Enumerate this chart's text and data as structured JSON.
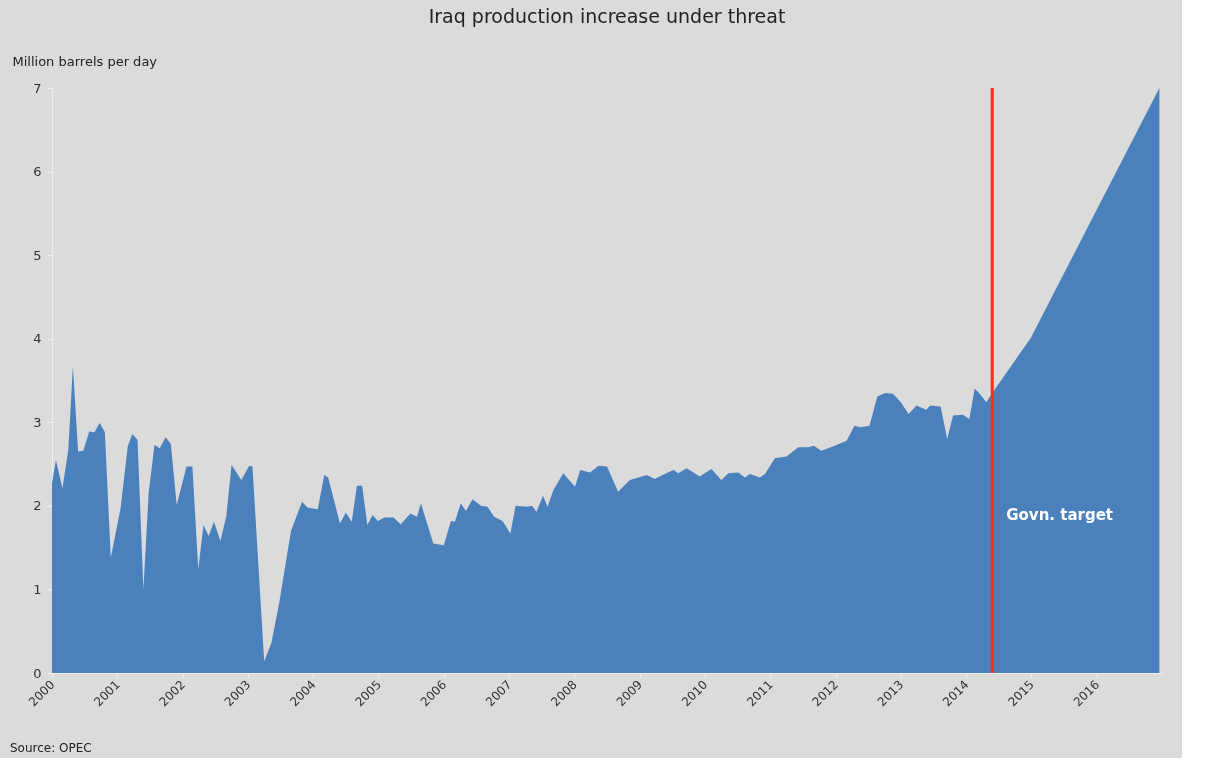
{
  "chart_data": {
    "type": "area",
    "title": "Iraq production increase under threat",
    "ylabel": "Million barrels per day",
    "x": [
      2000.0,
      2000.06,
      2000.16,
      2000.25,
      2000.32,
      2000.4,
      2000.48,
      2000.57,
      2000.65,
      2000.73,
      2000.81,
      2000.9,
      2001.05,
      2001.16,
      2001.23,
      2001.31,
      2001.4,
      2001.48,
      2001.57,
      2001.65,
      2001.74,
      2001.82,
      2001.91,
      2002.06,
      2002.15,
      2002.24,
      2002.32,
      2002.4,
      2002.48,
      2002.58,
      2002.67,
      2002.75,
      2002.9,
      2003.02,
      2003.07,
      2003.25,
      2003.36,
      2003.48,
      2003.66,
      2003.83,
      2003.91,
      2004.07,
      2004.17,
      2004.23,
      2004.41,
      2004.5,
      2004.59,
      2004.67,
      2004.75,
      2004.83,
      2004.91,
      2004.99,
      2005.09,
      2005.23,
      2005.34,
      2005.49,
      2005.59,
      2005.65,
      2005.84,
      2006.0,
      2006.11,
      2006.17,
      2006.26,
      2006.34,
      2006.44,
      2006.57,
      2006.67,
      2006.77,
      2006.9,
      2007.02,
      2007.1,
      2007.27,
      2007.35,
      2007.42,
      2007.52,
      2007.59,
      2007.68,
      2007.83,
      2008.01,
      2008.09,
      2008.24,
      2008.37,
      2008.5,
      2008.67,
      2008.85,
      2009.11,
      2009.23,
      2009.35,
      2009.52,
      2009.59,
      2009.72,
      2009.92,
      2010.1,
      2010.25,
      2010.36,
      2010.51,
      2010.61,
      2010.69,
      2010.84,
      2010.92,
      2011.07,
      2011.25,
      2011.43,
      2011.58,
      2011.67,
      2011.78,
      2011.96,
      2012.17,
      2012.29,
      2012.38,
      2012.52,
      2012.64,
      2012.76,
      2012.88,
      2013.0,
      2013.12,
      2013.24,
      2013.39,
      2013.45,
      2013.61,
      2013.71,
      2013.8,
      2013.95,
      2014.05,
      2014.13,
      2014.19,
      2014.31,
      2014.4,
      2014.99,
      2016.96
    ],
    "series": [
      {
        "color": "#4a81bd",
        "values": [
          2.27,
          2.55,
          2.21,
          2.67,
          3.67,
          2.65,
          2.66,
          2.89,
          2.88,
          2.99,
          2.88,
          1.38,
          1.97,
          2.71,
          2.86,
          2.79,
          1.0,
          2.15,
          2.73,
          2.69,
          2.82,
          2.74,
          2.01,
          2.47,
          2.47,
          1.24,
          1.77,
          1.64,
          1.81,
          1.58,
          1.88,
          2.49,
          2.31,
          2.48,
          2.47,
          0.14,
          0.36,
          0.84,
          1.7,
          2.05,
          1.98,
          1.96,
          2.37,
          2.34,
          1.79,
          1.92,
          1.81,
          2.24,
          2.24,
          1.77,
          1.89,
          1.82,
          1.86,
          1.86,
          1.78,
          1.91,
          1.87,
          2.03,
          1.55,
          1.53,
          1.82,
          1.81,
          2.03,
          1.94,
          2.08,
          2.0,
          1.99,
          1.87,
          1.82,
          1.67,
          2.0,
          1.99,
          2.0,
          1.93,
          2.12,
          1.99,
          2.19,
          2.39,
          2.23,
          2.43,
          2.4,
          2.48,
          2.47,
          2.17,
          2.31,
          2.37,
          2.32,
          2.37,
          2.43,
          2.39,
          2.45,
          2.35,
          2.44,
          2.31,
          2.39,
          2.4,
          2.34,
          2.38,
          2.34,
          2.38,
          2.57,
          2.59,
          2.7,
          2.7,
          2.72,
          2.66,
          2.71,
          2.78,
          2.96,
          2.94,
          2.96,
          3.31,
          3.35,
          3.34,
          3.24,
          3.1,
          3.2,
          3.15,
          3.2,
          3.19,
          2.8,
          3.08,
          3.09,
          3.04,
          3.4,
          3.36,
          3.24,
          3.35,
          4.01,
          7.0
        ]
      }
    ],
    "xlim": [
      2000,
      2017
    ],
    "xticks": [
      2000,
      2001,
      2002,
      2003,
      2004,
      2005,
      2006,
      2007,
      2008,
      2009,
      2010,
      2011,
      2012,
      2013,
      2014,
      2015,
      2016
    ],
    "ylim": [
      0,
      7
    ],
    "yticks": [
      0,
      1,
      2,
      3,
      4,
      5,
      6,
      7
    ],
    "grid": false,
    "ref_lines": [
      {
        "axis": "x",
        "value": 2014.4,
        "label": "Govn. target",
        "color": "#ff2a1a"
      }
    ],
    "annotations": [
      "Source: OPEC"
    ]
  }
}
